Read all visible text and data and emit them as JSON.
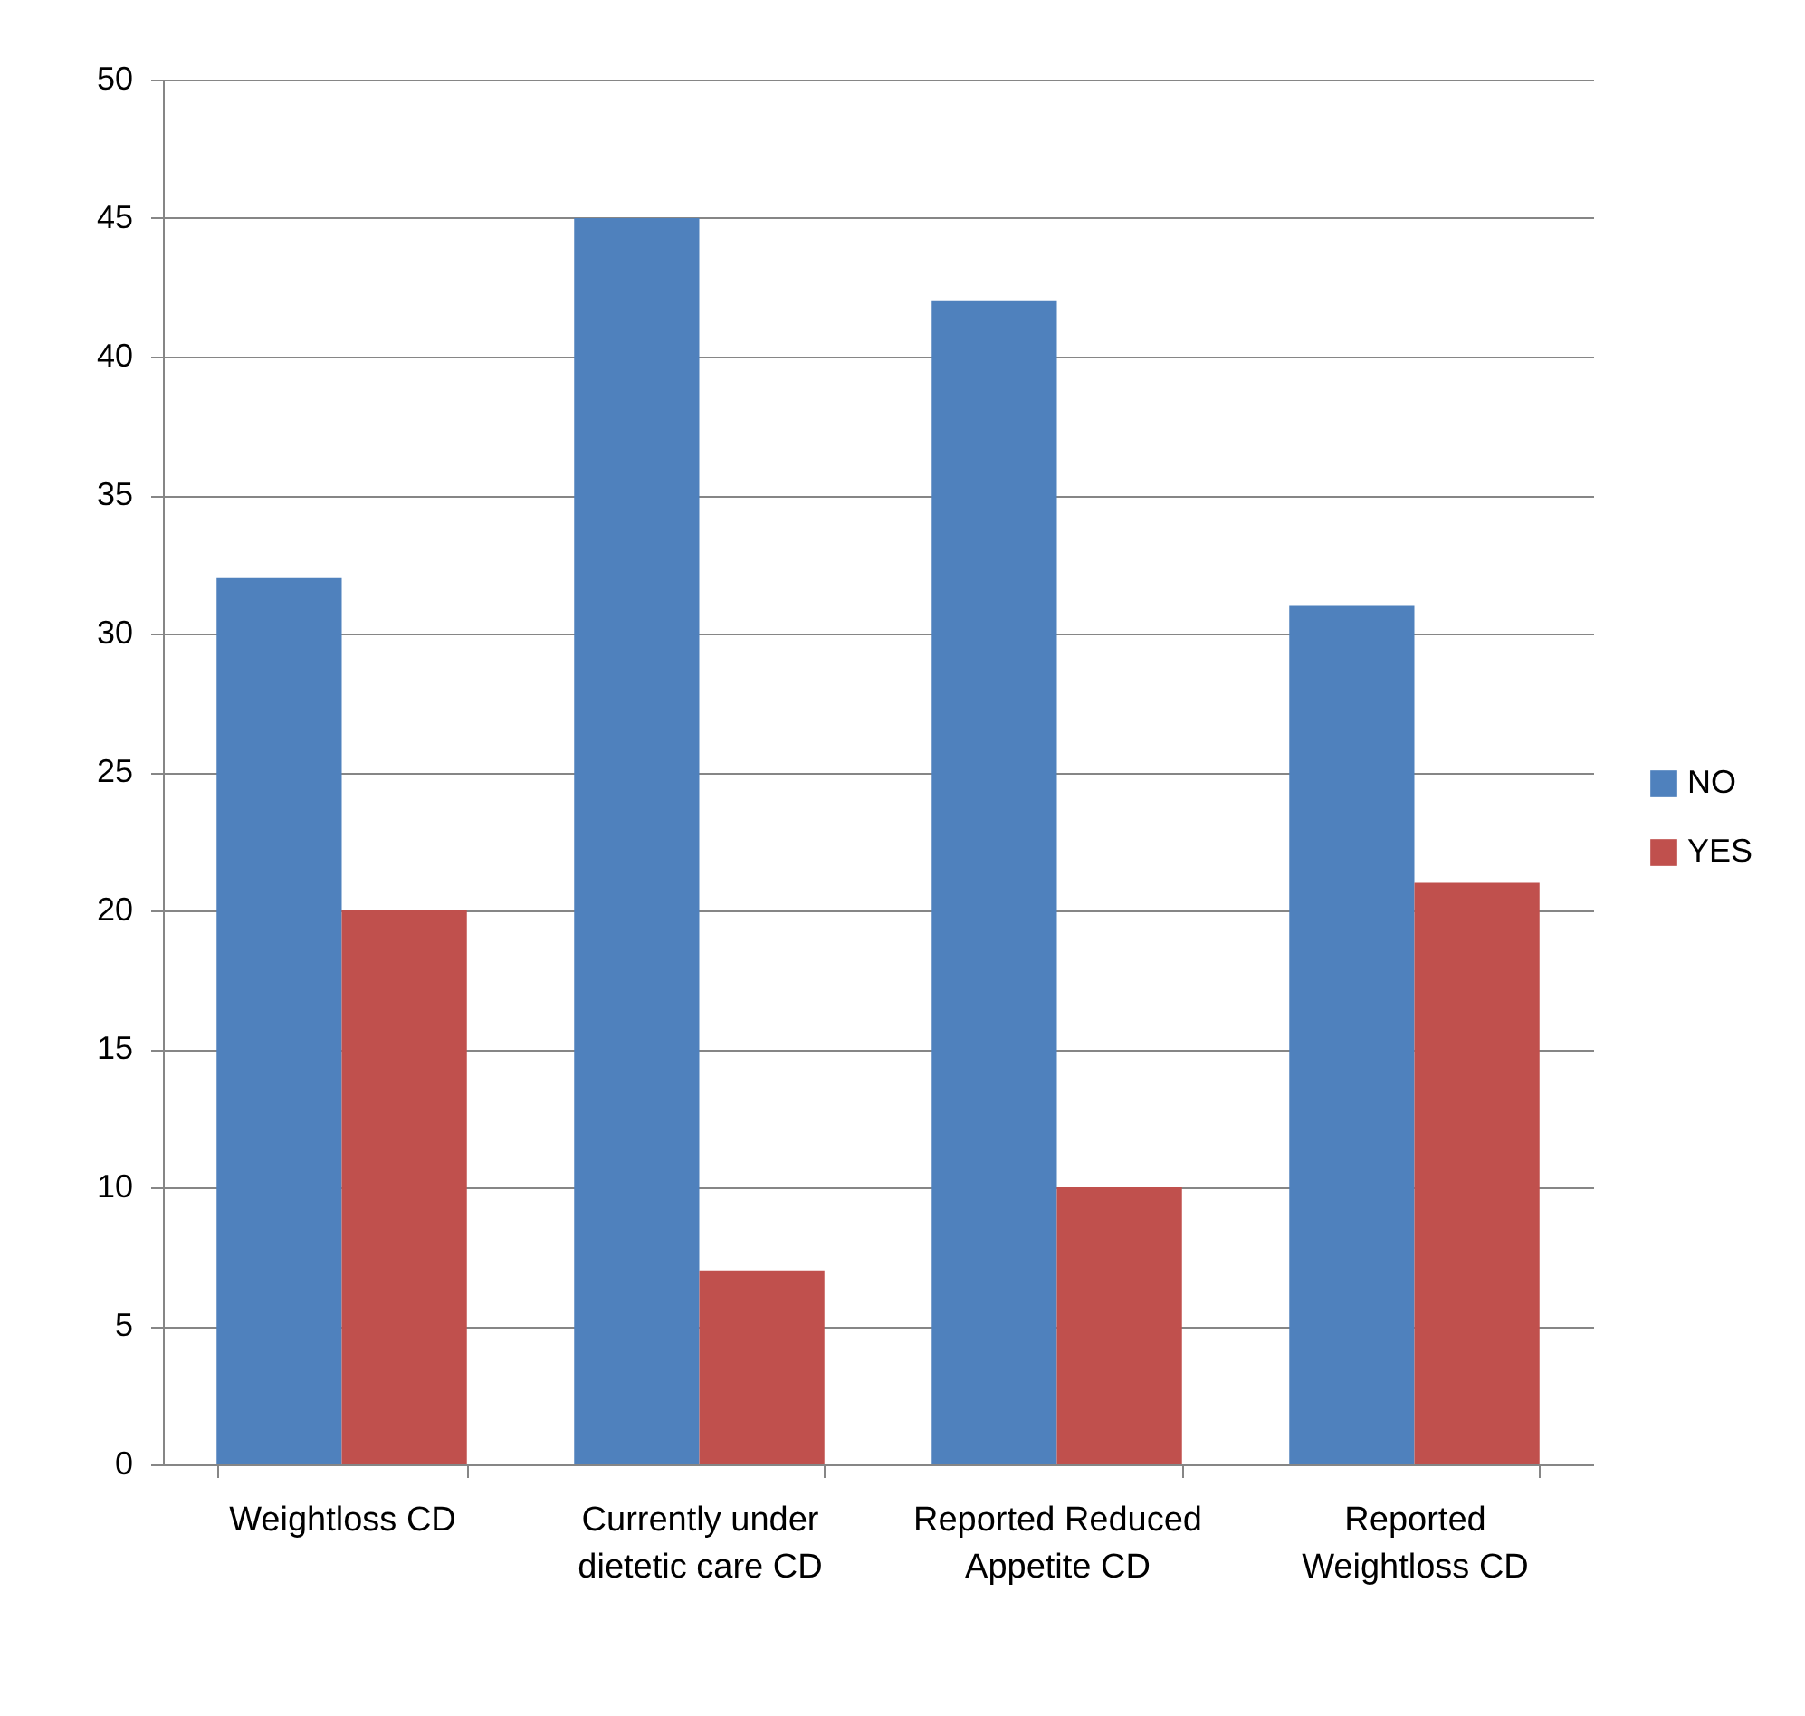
{
  "chart_data": {
    "type": "bar",
    "categories": [
      "Weightloss CD",
      "Currently under dietetic care CD",
      "Reported Reduced Appetite CD",
      "Reported Weightloss CD"
    ],
    "series": [
      {
        "name": "NO",
        "color": "#4f81bd",
        "values": [
          32,
          45,
          42,
          31
        ]
      },
      {
        "name": "YES",
        "color": "#c0504d",
        "values": [
          20,
          7,
          10,
          21
        ]
      }
    ],
    "ylim": [
      0,
      50
    ],
    "yticks": [
      0,
      5,
      10,
      15,
      20,
      25,
      30,
      35,
      40,
      45,
      50
    ],
    "grid": "y",
    "legend": "right"
  }
}
